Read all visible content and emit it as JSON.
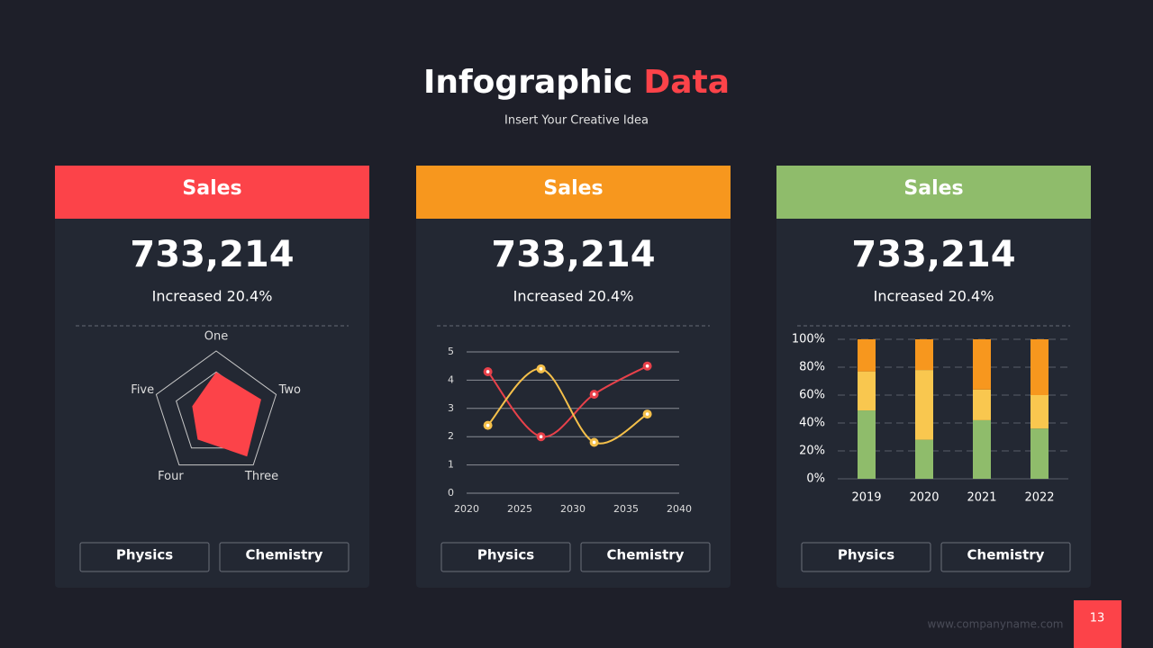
{
  "header": {
    "title_main": "Infographic",
    "title_accent": "Data",
    "subtitle": "Insert Your Creative Idea"
  },
  "cards": [
    {
      "heading": "Sales",
      "color": "#fc4349",
      "value": "733,214",
      "change": "Increased 20.4%",
      "buttons": [
        "Physics",
        "Chemistry"
      ]
    },
    {
      "heading": "Sales",
      "color": "#f7971e",
      "value": "733,214",
      "change": "Increased 20.4%",
      "buttons": [
        "Physics",
        "Chemistry"
      ]
    },
    {
      "heading": "Sales",
      "color": "#8fbc6b",
      "value": "733,214",
      "change": "Increased 20.4%",
      "buttons": [
        "Physics",
        "Chemistry"
      ]
    }
  ],
  "chart_data": [
    {
      "type": "radar",
      "categories": [
        "One",
        "Two",
        "Three",
        "Four",
        "Five"
      ],
      "values": [
        2,
        2.25,
        2.5,
        1.5,
        1.2
      ],
      "color": "#fc4349",
      "rlim": [
        0,
        3
      ],
      "rticks": [
        1,
        2,
        3
      ]
    },
    {
      "type": "line",
      "xlim": [
        2020,
        2040
      ],
      "xticks": [
        2020,
        2025,
        2030,
        2035,
        2040
      ],
      "ylim": [
        0,
        5
      ],
      "yticks": [
        0,
        1,
        2,
        3,
        4,
        5
      ],
      "grid": true,
      "series": [
        {
          "color": "#e8414a",
          "x": [
            2022,
            2027,
            2032,
            2037
          ],
          "values": [
            4.3,
            2,
            3.5,
            4.5
          ]
        },
        {
          "color": "#f5c04a",
          "x": [
            2022,
            2027,
            2032,
            2037
          ],
          "values": [
            2.4,
            4.4,
            1.8,
            2.8
          ]
        }
      ]
    },
    {
      "type": "stacked_bar",
      "categories": [
        "2019",
        "2020",
        "2021",
        "2022"
      ],
      "ylim": [
        0,
        100
      ],
      "grid": true,
      "yticks": [
        {
          "value": 0,
          "label": "0%"
        },
        {
          "value": 20,
          "label": "20%"
        },
        {
          "value": 40,
          "label": "40%"
        },
        {
          "value": 60,
          "label": "60%"
        },
        {
          "value": 80,
          "label": "80%"
        },
        {
          "value": 100,
          "label": "100%"
        }
      ],
      "series": [
        {
          "color": "#8fbc6b",
          "values": [
            49,
            28,
            42,
            36
          ]
        },
        {
          "color": "#f9c74f",
          "values": [
            28,
            50,
            22,
            24
          ]
        },
        {
          "color": "#f7971e",
          "values": [
            23,
            22,
            36,
            40
          ]
        }
      ]
    }
  ],
  "footer": {
    "url": "www.companyname.com",
    "page": "13"
  }
}
